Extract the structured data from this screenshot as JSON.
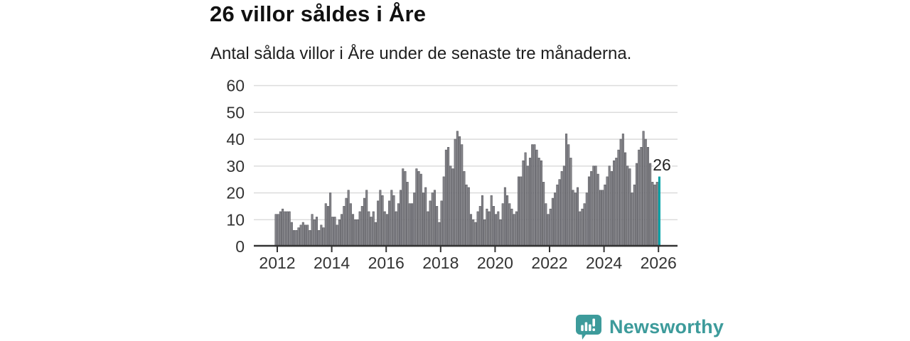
{
  "header": {
    "title": "26 villor såldes i Åre",
    "subtitle": "Antal sålda villor i Åre under de senaste tre månaderna."
  },
  "chart_data": {
    "type": "bar",
    "title": "26 villor såldes i Åre",
    "subtitle": "Antal sålda villor i Åre under de senaste tre månaderna.",
    "x_start_year": 2012,
    "months_per_bar": 1,
    "ylim": [
      0,
      60
    ],
    "yticks": [
      0,
      10,
      20,
      30,
      40,
      50,
      60
    ],
    "xticks": [
      "2012",
      "2014",
      "2016",
      "2018",
      "2020",
      "2022",
      "2024",
      "2026"
    ],
    "grid": "horizontal",
    "legend": "none",
    "annotation": {
      "label": "26",
      "target": "last-bar"
    },
    "highlight_last_bar": true,
    "colors": {
      "bar_fill": "#87878c",
      "bar_stroke": "#54545a",
      "highlight": "#00a2a6",
      "grid": "#dcdcdc",
      "axis": "#333333",
      "tick_label": "#333333",
      "annotation_text": "#222222"
    },
    "values": [
      12,
      12,
      13,
      14,
      13,
      13,
      13,
      9,
      6,
      6,
      7,
      8,
      9,
      8,
      8,
      6,
      12,
      10,
      11,
      6,
      8,
      7,
      16,
      15,
      20,
      11,
      11,
      8,
      10,
      12,
      15,
      18,
      21,
      16,
      12,
      10,
      10,
      13,
      15,
      18,
      21,
      13,
      11,
      13,
      9,
      17,
      21,
      19,
      13,
      12,
      17,
      21,
      19,
      13,
      16,
      21,
      29,
      28,
      24,
      16,
      16,
      20,
      29,
      28,
      27,
      20,
      22,
      13,
      17,
      20,
      21,
      15,
      9,
      17,
      26,
      36,
      37,
      30,
      29,
      40,
      43,
      41,
      38,
      28,
      23,
      22,
      12,
      10,
      9,
      13,
      15,
      19,
      10,
      14,
      13,
      19,
      15,
      12,
      13,
      10,
      16,
      22,
      19,
      16,
      14,
      12,
      13,
      26,
      26,
      32,
      35,
      30,
      33,
      38,
      38,
      36,
      33,
      32,
      24,
      16,
      12,
      14,
      18,
      20,
      23,
      25,
      28,
      30,
      42,
      38,
      33,
      21,
      20,
      22,
      13,
      14,
      16,
      20,
      26,
      28,
      30,
      30,
      27,
      21,
      21,
      23,
      26,
      30,
      28,
      32,
      33,
      36,
      40,
      42,
      35,
      30,
      29,
      20,
      23,
      31,
      36,
      37,
      43,
      40,
      37,
      31,
      24,
      23,
      24,
      26
    ]
  },
  "footer": {
    "logo_text": "Newsworthy",
    "logo_color": "#3d9b9b"
  }
}
